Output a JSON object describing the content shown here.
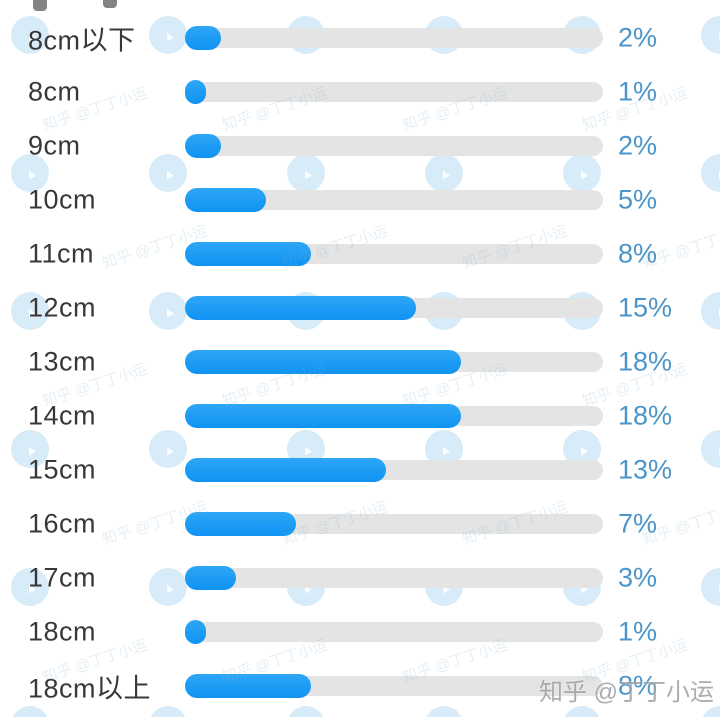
{
  "chart_data": {
    "type": "bar",
    "orientation": "horizontal",
    "title": "",
    "categories": [
      "8cm以下",
      "8cm",
      "9cm",
      "10cm",
      "11cm",
      "12cm",
      "13cm",
      "14cm",
      "15cm",
      "16cm",
      "17cm",
      "18cm",
      "18cm以上"
    ],
    "values": [
      2,
      1,
      2,
      5,
      8,
      15,
      18,
      18,
      13,
      7,
      3,
      1,
      8
    ],
    "value_labels": [
      "2%",
      "1%",
      "2%",
      "5%",
      "8%",
      "15%",
      "18%",
      "18%",
      "13%",
      "7%",
      "3%",
      "1%",
      "8%"
    ],
    "unit": "%",
    "value_range_shown": [
      1,
      18
    ],
    "legend": "none",
    "grid": "off",
    "colors": {
      "bar": "#1499f5",
      "track": "#e4e4e4",
      "value_text": "#4a95c9",
      "category_text": "#383838"
    }
  },
  "watermark": {
    "zhihu_credit": "知乎 @丁丁小运",
    "diagonal_text": "知乎 @丁丁小运",
    "circle_glyph": "▲"
  }
}
